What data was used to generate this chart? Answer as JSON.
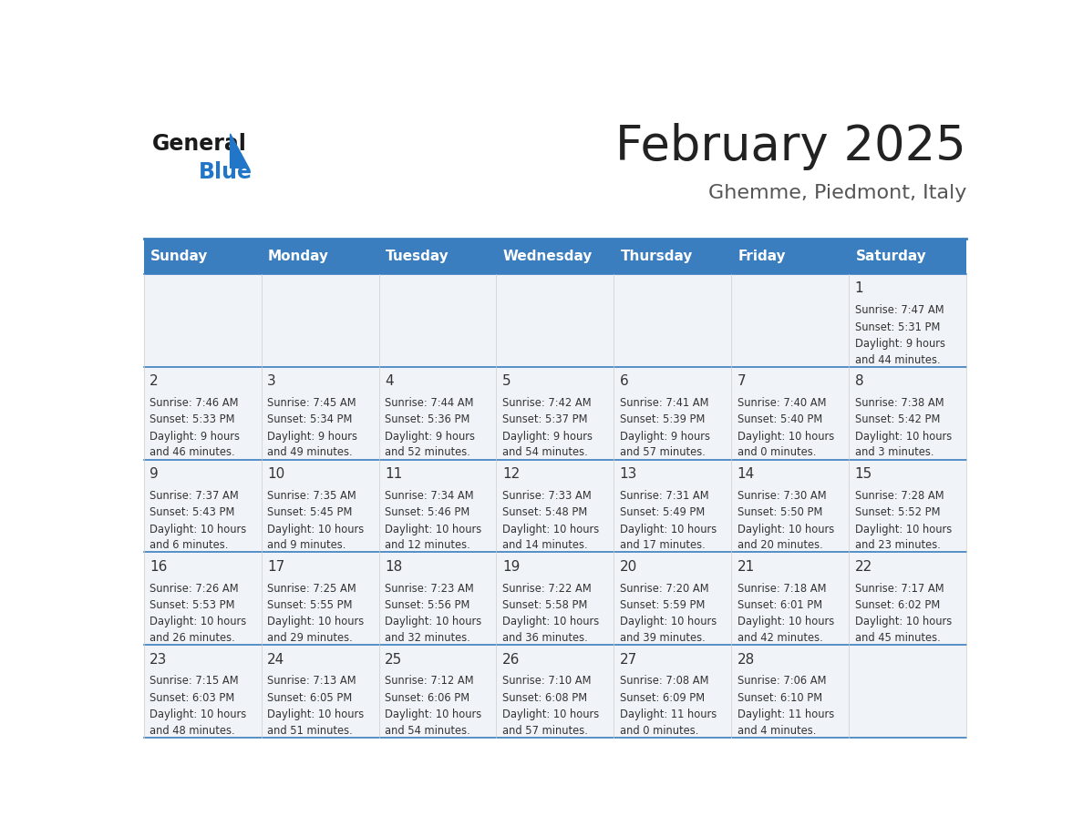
{
  "title": "February 2025",
  "subtitle": "Ghemme, Piedmont, Italy",
  "header_color": "#3a7ebf",
  "header_text_color": "#ffffff",
  "cell_bg": "#f0f4f8",
  "border_color": "#3a7ebf",
  "day_names": [
    "Sunday",
    "Monday",
    "Tuesday",
    "Wednesday",
    "Thursday",
    "Friday",
    "Saturday"
  ],
  "title_color": "#222222",
  "subtitle_color": "#555555",
  "logo_general_color": "#1a1a1a",
  "logo_blue_color": "#2176c7",
  "text_color": "#333333",
  "days": [
    {
      "date": 1,
      "col": 6,
      "row": 0,
      "sunrise": "7:47 AM",
      "sunset": "5:31 PM",
      "daylight_h": "9 hours",
      "daylight_m": "and 44 minutes."
    },
    {
      "date": 2,
      "col": 0,
      "row": 1,
      "sunrise": "7:46 AM",
      "sunset": "5:33 PM",
      "daylight_h": "9 hours",
      "daylight_m": "and 46 minutes."
    },
    {
      "date": 3,
      "col": 1,
      "row": 1,
      "sunrise": "7:45 AM",
      "sunset": "5:34 PM",
      "daylight_h": "9 hours",
      "daylight_m": "and 49 minutes."
    },
    {
      "date": 4,
      "col": 2,
      "row": 1,
      "sunrise": "7:44 AM",
      "sunset": "5:36 PM",
      "daylight_h": "9 hours",
      "daylight_m": "and 52 minutes."
    },
    {
      "date": 5,
      "col": 3,
      "row": 1,
      "sunrise": "7:42 AM",
      "sunset": "5:37 PM",
      "daylight_h": "9 hours",
      "daylight_m": "and 54 minutes."
    },
    {
      "date": 6,
      "col": 4,
      "row": 1,
      "sunrise": "7:41 AM",
      "sunset": "5:39 PM",
      "daylight_h": "9 hours",
      "daylight_m": "and 57 minutes."
    },
    {
      "date": 7,
      "col": 5,
      "row": 1,
      "sunrise": "7:40 AM",
      "sunset": "5:40 PM",
      "daylight_h": "10 hours",
      "daylight_m": "and 0 minutes."
    },
    {
      "date": 8,
      "col": 6,
      "row": 1,
      "sunrise": "7:38 AM",
      "sunset": "5:42 PM",
      "daylight_h": "10 hours",
      "daylight_m": "and 3 minutes."
    },
    {
      "date": 9,
      "col": 0,
      "row": 2,
      "sunrise": "7:37 AM",
      "sunset": "5:43 PM",
      "daylight_h": "10 hours",
      "daylight_m": "and 6 minutes."
    },
    {
      "date": 10,
      "col": 1,
      "row": 2,
      "sunrise": "7:35 AM",
      "sunset": "5:45 PM",
      "daylight_h": "10 hours",
      "daylight_m": "and 9 minutes."
    },
    {
      "date": 11,
      "col": 2,
      "row": 2,
      "sunrise": "7:34 AM",
      "sunset": "5:46 PM",
      "daylight_h": "10 hours",
      "daylight_m": "and 12 minutes."
    },
    {
      "date": 12,
      "col": 3,
      "row": 2,
      "sunrise": "7:33 AM",
      "sunset": "5:48 PM",
      "daylight_h": "10 hours",
      "daylight_m": "and 14 minutes."
    },
    {
      "date": 13,
      "col": 4,
      "row": 2,
      "sunrise": "7:31 AM",
      "sunset": "5:49 PM",
      "daylight_h": "10 hours",
      "daylight_m": "and 17 minutes."
    },
    {
      "date": 14,
      "col": 5,
      "row": 2,
      "sunrise": "7:30 AM",
      "sunset": "5:50 PM",
      "daylight_h": "10 hours",
      "daylight_m": "and 20 minutes."
    },
    {
      "date": 15,
      "col": 6,
      "row": 2,
      "sunrise": "7:28 AM",
      "sunset": "5:52 PM",
      "daylight_h": "10 hours",
      "daylight_m": "and 23 minutes."
    },
    {
      "date": 16,
      "col": 0,
      "row": 3,
      "sunrise": "7:26 AM",
      "sunset": "5:53 PM",
      "daylight_h": "10 hours",
      "daylight_m": "and 26 minutes."
    },
    {
      "date": 17,
      "col": 1,
      "row": 3,
      "sunrise": "7:25 AM",
      "sunset": "5:55 PM",
      "daylight_h": "10 hours",
      "daylight_m": "and 29 minutes."
    },
    {
      "date": 18,
      "col": 2,
      "row": 3,
      "sunrise": "7:23 AM",
      "sunset": "5:56 PM",
      "daylight_h": "10 hours",
      "daylight_m": "and 32 minutes."
    },
    {
      "date": 19,
      "col": 3,
      "row": 3,
      "sunrise": "7:22 AM",
      "sunset": "5:58 PM",
      "daylight_h": "10 hours",
      "daylight_m": "and 36 minutes."
    },
    {
      "date": 20,
      "col": 4,
      "row": 3,
      "sunrise": "7:20 AM",
      "sunset": "5:59 PM",
      "daylight_h": "10 hours",
      "daylight_m": "and 39 minutes."
    },
    {
      "date": 21,
      "col": 5,
      "row": 3,
      "sunrise": "7:18 AM",
      "sunset": "6:01 PM",
      "daylight_h": "10 hours",
      "daylight_m": "and 42 minutes."
    },
    {
      "date": 22,
      "col": 6,
      "row": 3,
      "sunrise": "7:17 AM",
      "sunset": "6:02 PM",
      "daylight_h": "10 hours",
      "daylight_m": "and 45 minutes."
    },
    {
      "date": 23,
      "col": 0,
      "row": 4,
      "sunrise": "7:15 AM",
      "sunset": "6:03 PM",
      "daylight_h": "10 hours",
      "daylight_m": "and 48 minutes."
    },
    {
      "date": 24,
      "col": 1,
      "row": 4,
      "sunrise": "7:13 AM",
      "sunset": "6:05 PM",
      "daylight_h": "10 hours",
      "daylight_m": "and 51 minutes."
    },
    {
      "date": 25,
      "col": 2,
      "row": 4,
      "sunrise": "7:12 AM",
      "sunset": "6:06 PM",
      "daylight_h": "10 hours",
      "daylight_m": "and 54 minutes."
    },
    {
      "date": 26,
      "col": 3,
      "row": 4,
      "sunrise": "7:10 AM",
      "sunset": "6:08 PM",
      "daylight_h": "10 hours",
      "daylight_m": "and 57 minutes."
    },
    {
      "date": 27,
      "col": 4,
      "row": 4,
      "sunrise": "7:08 AM",
      "sunset": "6:09 PM",
      "daylight_h": "11 hours",
      "daylight_m": "and 0 minutes."
    },
    {
      "date": 28,
      "col": 5,
      "row": 4,
      "sunrise": "7:06 AM",
      "sunset": "6:10 PM",
      "daylight_h": "11 hours",
      "daylight_m": "and 4 minutes."
    }
  ]
}
